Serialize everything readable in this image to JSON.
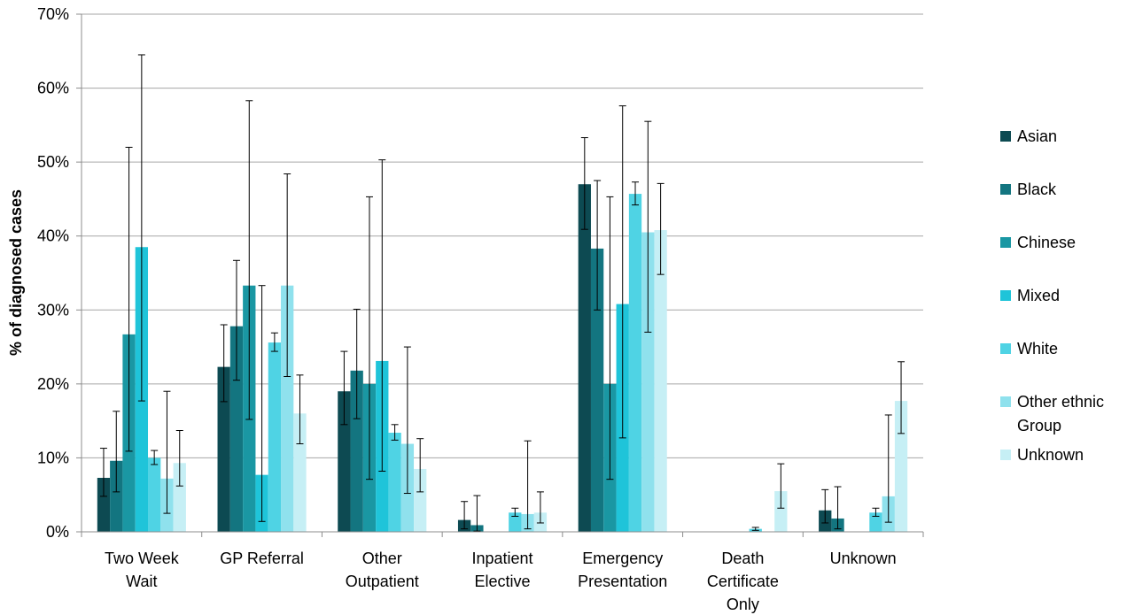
{
  "chart_data": {
    "type": "bar",
    "title": "",
    "xlabel": "",
    "ylabel": "% of diagnosed cases",
    "ylim": [
      0,
      70
    ],
    "yticks": [
      "0%",
      "10%",
      "20%",
      "30%",
      "40%",
      "50%",
      "60%",
      "70%"
    ],
    "grid": true,
    "legend_position": "right",
    "categories": [
      [
        "Two Week",
        "Wait"
      ],
      [
        "GP Referral"
      ],
      [
        "Other",
        "Outpatient"
      ],
      [
        "Inpatient",
        "Elective"
      ],
      [
        "Emergency",
        "Presentation"
      ],
      [
        "Death",
        "Certificate",
        "Only"
      ],
      [
        "Unknown"
      ]
    ],
    "series": [
      {
        "name": "Asian",
        "color": "#0d4a52",
        "values": [
          7.3,
          22.3,
          19.0,
          1.6,
          47.0,
          0,
          2.9
        ],
        "err_low": [
          4.8,
          17.6,
          14.5,
          0.4,
          40.9,
          0,
          1.2
        ],
        "err_high": [
          11.3,
          28.0,
          24.4,
          4.1,
          53.3,
          0,
          5.7
        ]
      },
      {
        "name": "Black",
        "color": "#137580",
        "values": [
          9.6,
          27.8,
          21.8,
          0.9,
          38.3,
          0,
          1.8
        ],
        "err_low": [
          5.4,
          20.5,
          15.3,
          0.1,
          30.0,
          0,
          0.4
        ],
        "err_high": [
          16.3,
          36.7,
          30.1,
          4.9,
          47.5,
          0,
          6.1
        ]
      },
      {
        "name": "Chinese",
        "color": "#1a97a3",
        "values": [
          26.7,
          33.3,
          20.0,
          0,
          20.0,
          0,
          0
        ],
        "err_low": [
          10.9,
          15.2,
          7.1,
          0,
          7.1,
          0,
          0
        ],
        "err_high": [
          52.0,
          58.3,
          45.3,
          0,
          45.3,
          0,
          0
        ]
      },
      {
        "name": "Mixed",
        "color": "#1fc4d9",
        "values": [
          38.5,
          7.7,
          23.1,
          0,
          30.8,
          0,
          0
        ],
        "err_low": [
          17.7,
          1.4,
          8.2,
          0,
          12.7,
          0,
          0
        ],
        "err_high": [
          64.5,
          33.3,
          50.3,
          0,
          57.6,
          0,
          0
        ]
      },
      {
        "name": "White",
        "color": "#4fd3e4",
        "values": [
          10.0,
          25.6,
          13.4,
          2.6,
          45.7,
          0.4,
          2.6
        ],
        "err_low": [
          9.1,
          24.4,
          12.4,
          2.1,
          44.2,
          0.2,
          2.1
        ],
        "err_high": [
          11.0,
          26.9,
          14.5,
          3.2,
          47.3,
          0.6,
          3.2
        ]
      },
      {
        "name": "Other ethnic Group",
        "color": "#8fe1ed",
        "values": [
          7.2,
          33.3,
          11.9,
          2.4,
          40.5,
          0,
          4.8
        ],
        "err_low": [
          2.5,
          21.0,
          5.2,
          0.4,
          27.0,
          0,
          1.3
        ],
        "err_high": [
          19.0,
          48.4,
          25.0,
          12.3,
          55.5,
          0,
          15.8
        ]
      },
      {
        "name": "Unknown",
        "color": "#c6eff5",
        "values": [
          9.3,
          16.0,
          8.5,
          2.6,
          40.8,
          5.5,
          17.7
        ],
        "err_low": [
          6.2,
          11.9,
          5.4,
          1.2,
          34.8,
          3.2,
          13.3
        ],
        "err_high": [
          13.7,
          21.2,
          12.6,
          5.4,
          47.1,
          9.2,
          23.0
        ]
      }
    ]
  }
}
